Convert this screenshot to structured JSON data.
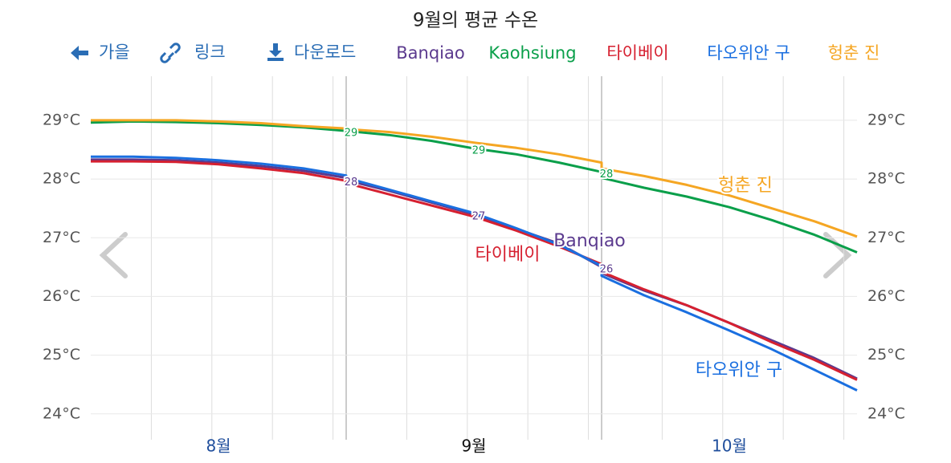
{
  "chart_data": {
    "type": "line",
    "title": "9월의 평균 수온",
    "buttons": [
      "가을",
      "링크",
      "다운로드"
    ],
    "categories": [
      null,
      null,
      null,
      "8월",
      null,
      null,
      null,
      null,
      null,
      null,
      "9월",
      null,
      null,
      null,
      null,
      null,
      null,
      "10월",
      null,
      null,
      null
    ],
    "category_colors": [
      "#1f4e9c",
      "#111111",
      "#1f4e9c"
    ],
    "series": [
      {
        "name": "Banqiao",
        "color": "#5b3a8e",
        "values": [
          28.33,
          28.33,
          28.32,
          28.28,
          28.22,
          28.14,
          28.02,
          27.98,
          27.8,
          27.6,
          27.4,
          27.15,
          26.9,
          26.5,
          26.4,
          26.1,
          25.85,
          25.55,
          25.25,
          24.95,
          24.6
        ],
        "value_labels": [
          null,
          null,
          null,
          null,
          null,
          null,
          null,
          "28",
          null,
          null,
          "27",
          null,
          null,
          "26",
          null,
          null,
          null,
          null,
          null,
          null,
          null
        ]
      },
      {
        "name": "Kaohsiung",
        "color": "#0a9f4a",
        "values": [
          28.96,
          28.98,
          28.97,
          28.95,
          28.92,
          28.88,
          28.82,
          28.82,
          28.75,
          28.65,
          28.52,
          28.42,
          28.28,
          28.12,
          28.02,
          27.85,
          27.7,
          27.52,
          27.3,
          27.05,
          26.75
        ],
        "value_labels": [
          null,
          null,
          null,
          null,
          null,
          null,
          null,
          "29",
          null,
          null,
          "29",
          null,
          null,
          "28",
          null,
          null,
          null,
          null,
          null,
          null,
          null
        ]
      },
      {
        "name": "타이베이",
        "color": "#d62030",
        "values": [
          28.3,
          28.3,
          28.29,
          28.25,
          28.18,
          28.1,
          27.97,
          27.93,
          27.74,
          27.55,
          27.36,
          27.12,
          26.85,
          26.55,
          26.42,
          26.12,
          25.85,
          25.55,
          25.22,
          24.92,
          24.58
        ]
      },
      {
        "name": "타오위안 구",
        "color": "#1a6fe0",
        "values": [
          28.38,
          28.38,
          28.36,
          28.32,
          28.26,
          28.18,
          28.06,
          28.02,
          27.82,
          27.62,
          27.42,
          27.16,
          26.88,
          26.52,
          26.35,
          26.02,
          25.73,
          25.42,
          25.1,
          24.75,
          24.4
        ]
      },
      {
        "name": "헝춘 진",
        "color": "#f5a623",
        "values": [
          29.0,
          29.0,
          29.0,
          28.98,
          28.95,
          28.9,
          28.86,
          28.85,
          28.8,
          28.72,
          28.62,
          28.53,
          28.42,
          28.28,
          28.18,
          28.05,
          27.9,
          27.72,
          27.5,
          27.28,
          27.02
        ]
      }
    ],
    "ylim": [
      23.56,
      29.75
    ],
    "yticks": [
      {
        "value": 24,
        "label": "24°C"
      },
      {
        "value": 25,
        "label": "25°C"
      },
      {
        "value": 26,
        "label": "26°C"
      },
      {
        "value": 27,
        "label": "27°C"
      },
      {
        "value": 28,
        "label": "28°C"
      },
      {
        "value": 29,
        "label": "29°C"
      }
    ],
    "grid": true
  }
}
